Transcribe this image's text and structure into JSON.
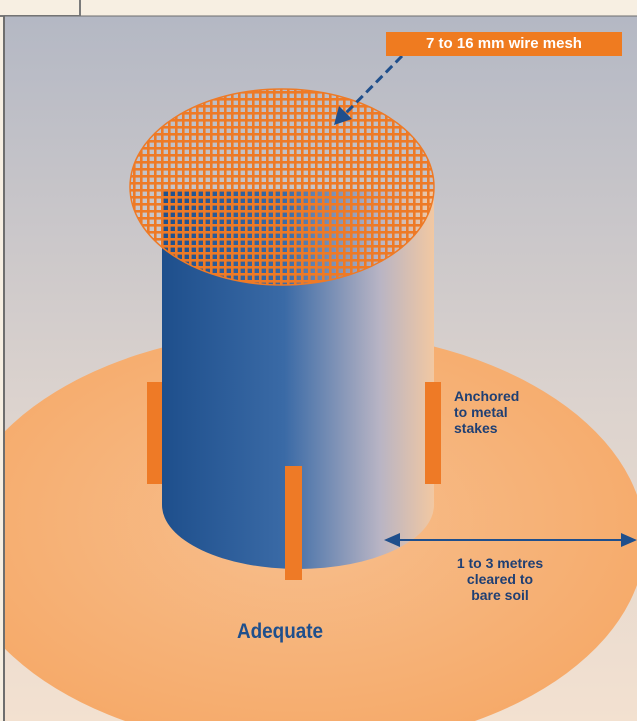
{
  "mesh_callout": "7 to 16 mm wire mesh",
  "anchor_label": [
    "Anchored",
    "to metal",
    "stakes"
  ],
  "clearance_label": [
    "1 to 3 metres",
    "cleared to",
    "bare soil"
  ],
  "verdict": "Adequate",
  "colors": {
    "accent_orange": "#ef7b20",
    "cylinder_blue": "#2d5f9a",
    "text_navy": "#1f3f73",
    "cleared_area": "#f8b47e"
  }
}
